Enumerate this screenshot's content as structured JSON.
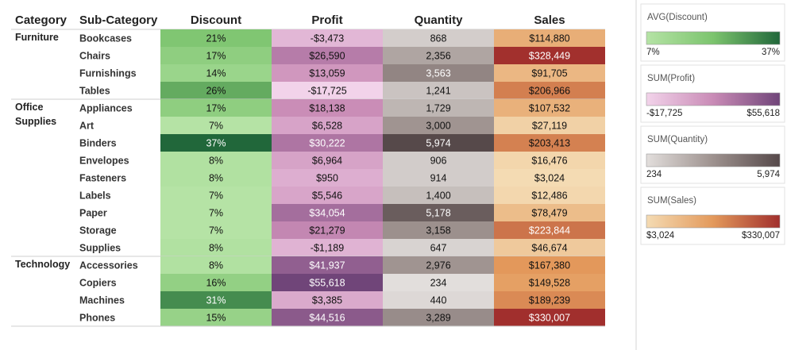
{
  "chart_data": {
    "type": "highlight-table",
    "row_headers": [
      "Category",
      "Sub-Category"
    ],
    "groups": [
      {
        "name": "Furniture",
        "categories": [
          "Bookcases",
          "Chairs",
          "Furnishings",
          "Tables"
        ]
      },
      {
        "name": "Office Supplies",
        "categories": [
          "Appliances",
          "Art",
          "Binders",
          "Envelopes",
          "Fasteners",
          "Labels",
          "Paper",
          "Storage",
          "Supplies"
        ]
      },
      {
        "name": "Technology",
        "categories": [
          "Accessories",
          "Copiers",
          "Machines",
          "Phones"
        ]
      }
    ],
    "series": [
      {
        "name": "Discount",
        "colors": [
          "#b5e3a5",
          "#7cc46e",
          "#21673a"
        ],
        "values": [
          21,
          17,
          14,
          26,
          17,
          7,
          37,
          8,
          8,
          7,
          7,
          7,
          8,
          8,
          16,
          31,
          15
        ],
        "value_labels": [
          "21%",
          "17%",
          "14%",
          "26%",
          "17%",
          "7%",
          "37%",
          "8%",
          "8%",
          "7%",
          "7%",
          "7%",
          "8%",
          "8%",
          "16%",
          "31%",
          "15%"
        ]
      },
      {
        "name": "Profit",
        "colors": [
          "#f2d3ea",
          "#c98bb6",
          "#704579"
        ],
        "values": [
          -3473,
          26590,
          13059,
          -17725,
          18138,
          6528,
          30222,
          6964,
          950,
          5546,
          34054,
          21279,
          -1189,
          41937,
          55618,
          3385,
          44516
        ],
        "value_labels": [
          "-$3,473",
          "$26,590",
          "$13,059",
          "-$17,725",
          "$18,138",
          "$6,528",
          "$30,222",
          "$6,964",
          "$950",
          "$5,546",
          "$34,054",
          "$21,279",
          "-$1,189",
          "$41,937",
          "$55,618",
          "$3,385",
          "$44,516"
        ]
      },
      {
        "name": "Quantity",
        "colors": [
          "#e2dedc",
          "#9d918e",
          "#56494a"
        ],
        "values": [
          868,
          2356,
          3563,
          1241,
          1729,
          3000,
          5974,
          906,
          914,
          1400,
          5178,
          3158,
          647,
          2976,
          234,
          440,
          3289
        ],
        "value_labels": [
          "868",
          "2,356",
          "3,563",
          "1,241",
          "1,729",
          "3,000",
          "5,974",
          "906",
          "914",
          "1,400",
          "5,178",
          "3,158",
          "647",
          "2,976",
          "234",
          "440",
          "3,289"
        ]
      },
      {
        "name": "Sales",
        "colors": [
          "#f4dbb3",
          "#e3995b",
          "#a12f2d"
        ],
        "values": [
          114880,
          328449,
          91705,
          206966,
          107532,
          27119,
          203413,
          16476,
          3024,
          12486,
          78479,
          223844,
          46674,
          167380,
          149528,
          189239,
          330007
        ],
        "value_labels": [
          "$114,880",
          "$328,449",
          "$91,705",
          "$206,966",
          "$107,532",
          "$27,119",
          "$203,413",
          "$16,476",
          "$3,024",
          "$12,486",
          "$78,479",
          "$223,844",
          "$46,674",
          "$167,380",
          "$149,528",
          "$189,239",
          "$330,007"
        ]
      }
    ],
    "legends": [
      {
        "title": "AVG(Discount)",
        "series": 0,
        "min": 7,
        "max": 37,
        "min_label": "7%",
        "max_label": "37%"
      },
      {
        "title": "SUM(Profit)",
        "series": 1,
        "min": -17725,
        "max": 55618,
        "min_label": "-$17,725",
        "max_label": "$55,618"
      },
      {
        "title": "SUM(Quantity)",
        "series": 2,
        "min": 234,
        "max": 5974,
        "min_label": "234",
        "max_label": "5,974"
      },
      {
        "title": "SUM(Sales)",
        "series": 3,
        "min": 3024,
        "max": 330007,
        "min_label": "$3,024",
        "max_label": "$330,007"
      }
    ]
  }
}
